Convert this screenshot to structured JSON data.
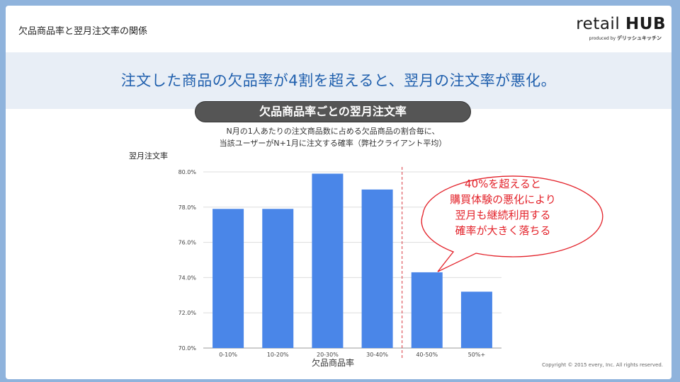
{
  "slide": {
    "title": "欠品商品率と翌月注文率の関係",
    "headline": "注文した商品の欠品率が4割を超えると、翌月の注文率が悪化。",
    "pill_title": "欠品商品率ごとの翌月注文率",
    "subtitle_line1": "N月の1人あたりの注文商品数に占める欠品商品の割合毎に、",
    "subtitle_line2": "当該ユーザーがN+1月に注文する確率（弊社クライアント平均）",
    "copyright": "Copyright © 2015 every, Inc. All rights reserved."
  },
  "logo": {
    "main_plain": "retail ",
    "main_bold": "HUB",
    "sub_prefix": "produced by ",
    "sub_brand": "デリッシュキッチン"
  },
  "callout": {
    "lines": [
      "40%を超えると",
      "購買体験の悪化により",
      "翌月も継続利用する",
      "確率が大きく落ちる"
    ],
    "color": "#e3222a"
  },
  "chart_data": {
    "type": "bar",
    "categories": [
      "0-10%",
      "10-20%",
      "20-30%",
      "30-40%",
      "40-50%",
      "50%+"
    ],
    "values": [
      77.9,
      77.9,
      79.9,
      79.0,
      74.3,
      73.2
    ],
    "xlabel": "欠品商品率",
    "ylabel": "翌月注文率",
    "ylim": [
      70,
      80
    ],
    "yticks": [
      "70.0%",
      "72.0%",
      "74.0%",
      "76.0%",
      "78.0%",
      "80.0%"
    ],
    "bar_color": "#4a86e8",
    "grid": true,
    "divider_after_category": "30-40%",
    "divider_color": "#d9363e"
  }
}
